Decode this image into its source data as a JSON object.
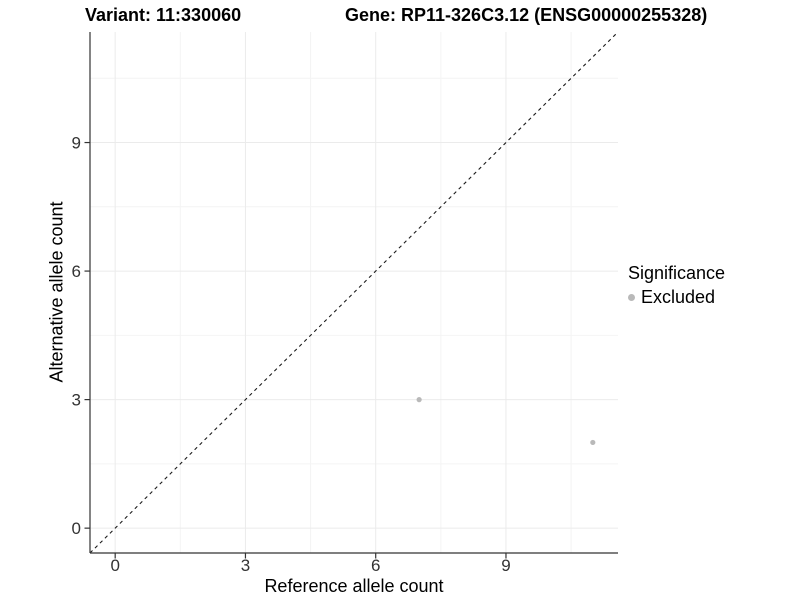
{
  "chart_data": {
    "type": "scatter",
    "title_left": "Variant: 11:330060",
    "title_right": "Gene: RP11-326C3.12 (ENSG00000255328)",
    "xlabel": "Reference allele count",
    "ylabel": "Alternative allele count",
    "xlim": [
      -0.58,
      11.58
    ],
    "ylim": [
      -0.58,
      11.58
    ],
    "x_ticks": [
      0,
      3,
      6,
      9
    ],
    "y_ticks": [
      0,
      3,
      6,
      9
    ],
    "x_minor_ticks": [
      1.5,
      4.5,
      7.5,
      10.5
    ],
    "y_minor_ticks": [
      1.5,
      4.5,
      7.5,
      10.5
    ],
    "grid": true,
    "abline": {
      "slope": 1,
      "intercept": 0,
      "style": "dashed"
    },
    "series": [
      {
        "name": "Excluded",
        "color": "#b9b9b9",
        "points": [
          {
            "x": 7,
            "y": 3
          },
          {
            "x": 11,
            "y": 2
          }
        ]
      }
    ],
    "legend": {
      "title": "Significance",
      "position": "right",
      "items": [
        {
          "label": "Excluded",
          "color": "#b9b9b9"
        }
      ]
    },
    "colors": {
      "background": "#ffffff",
      "grid_major": "#ebebeb",
      "grid_minor": "#f4f4f4",
      "axis_line": "#333333",
      "tick_text": "#333333",
      "title_text": "#000000",
      "identity_line": "#1a1a1a",
      "point": "#b9b9b9"
    }
  }
}
